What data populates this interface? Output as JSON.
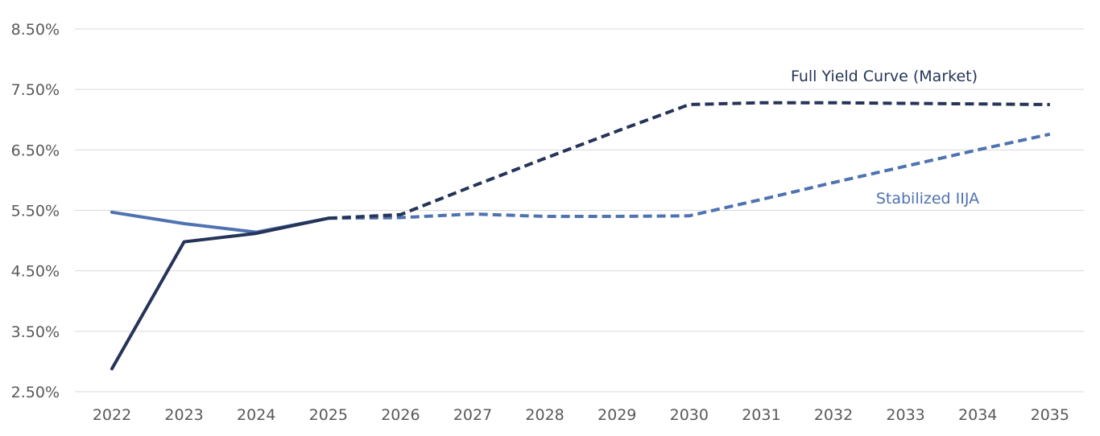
{
  "chart_data": {
    "type": "line",
    "title": "",
    "xlabel": "",
    "ylabel": "",
    "categories": [
      "2022",
      "2023",
      "2024",
      "2025",
      "2026",
      "2027",
      "2028",
      "2029",
      "2030",
      "2031",
      "2032",
      "2033",
      "2034",
      "2035"
    ],
    "ylim": [
      2.5,
      8.5
    ],
    "yticks": [
      2.5,
      3.5,
      4.5,
      5.5,
      6.5,
      7.5,
      8.5
    ],
    "ytick_labels": [
      "2.50%",
      "3.50%",
      "4.50%",
      "5.50%",
      "6.50%",
      "7.50%",
      "8.50%"
    ],
    "grid": true,
    "legend": "none",
    "series": [
      {
        "name": "Full Yield Curve (Market)",
        "color": "#253458",
        "values": [
          2.88,
          4.98,
          5.12,
          5.37,
          5.43,
          5.9,
          6.36,
          6.81,
          7.25,
          7.28,
          7.28,
          7.27,
          7.26,
          7.25
        ],
        "dashed_from_index": 3
      },
      {
        "name": "Stabilized IIJA",
        "color": "#4f72b0",
        "values": [
          5.47,
          5.28,
          5.14,
          5.37,
          5.38,
          5.44,
          5.4,
          5.4,
          5.41,
          5.68,
          5.96,
          6.23,
          6.5,
          6.76
        ],
        "dashed_from_index": 3
      }
    ]
  }
}
